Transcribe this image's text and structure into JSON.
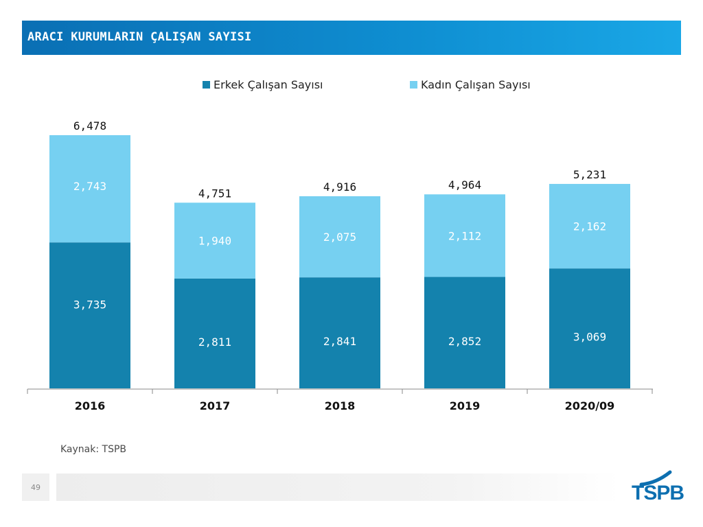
{
  "header": {
    "title": "ARACI KURUMLARIN ÇALIŞAN SAYISI"
  },
  "colors": {
    "male": "#1482ad",
    "female": "#76d0f1",
    "header": "#0a7cc2",
    "logo": "#0d6fb0"
  },
  "chart_data": {
    "type": "bar",
    "stacked": true,
    "categories": [
      "2016",
      "2017",
      "2018",
      "2019",
      "2020/09"
    ],
    "series": [
      {
        "name": "Erkek Çalışan Sayısı",
        "values": [
          3735,
          2811,
          2841,
          2852,
          3069
        ],
        "labels": [
          "3,735",
          "2,811",
          "2,841",
          "2,852",
          "3,069"
        ]
      },
      {
        "name": "Kadın Çalışan Sayısı",
        "values": [
          2743,
          1940,
          2075,
          2112,
          2162
        ],
        "labels": [
          "2,743",
          "1,940",
          "2,075",
          "2,112",
          "2,162"
        ]
      }
    ],
    "totals": [
      6478,
      4751,
      4916,
      4964,
      5231
    ],
    "total_labels": [
      "6,478",
      "4,751",
      "4,916",
      "4,964",
      "5,231"
    ],
    "legend_position": "top",
    "grid": false
  },
  "source": "Kaynak: TSPB",
  "page_number": "49",
  "logo": {
    "text": "TSPB"
  }
}
